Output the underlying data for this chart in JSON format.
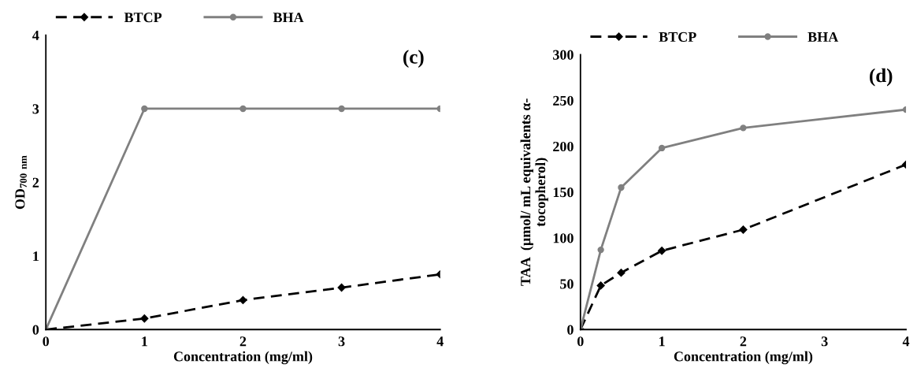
{
  "chart_data": [
    {
      "type": "line",
      "title": null,
      "annotations": [
        "(c)"
      ],
      "xlabel": "Concentration (mg/ml)",
      "ylabel": "OD$_{700}$ $_{nm}$",
      "xlim": [
        0,
        4
      ],
      "xticks": [
        0,
        1,
        2,
        3,
        4
      ],
      "ylim": [
        0,
        4
      ],
      "yticks": [
        0,
        1,
        2,
        3,
        4
      ],
      "grid": false,
      "legend": "top",
      "series": [
        {
          "name": "BTCP",
          "color": "#000000",
          "marker": "diamond",
          "line_style": "dashed",
          "x": [
            0,
            1,
            2,
            3,
            4
          ],
          "values": [
            0,
            0.15,
            0.4,
            0.57,
            0.75
          ]
        },
        {
          "name": "BHA",
          "color": "#808080",
          "marker": "circle",
          "line_style": "solid",
          "x": [
            0,
            1,
            2,
            3,
            4
          ],
          "values": [
            0,
            3,
            3,
            3,
            3
          ]
        }
      ]
    },
    {
      "type": "line",
      "annotations": [
        "(d)"
      ],
      "xlabel": "Concentration (mg/ml)",
      "ylabel": "TAA  (µmol/ mL equivalents α-\ntocopherol)",
      "xlim": [
        0,
        4
      ],
      "xticks": [
        0,
        1,
        2,
        3,
        4
      ],
      "ylim": [
        0,
        300
      ],
      "yticks": [
        0,
        50,
        100,
        150,
        200,
        250,
        300
      ],
      "grid": false,
      "legend": "top",
      "series": [
        {
          "name": "BTCP",
          "color": "#000000",
          "marker": "diamond",
          "line_style": "dashed",
          "x": [
            0,
            0.25,
            0.5,
            1,
            2,
            4
          ],
          "values": [
            0,
            48,
            62,
            86,
            109,
            180
          ]
        },
        {
          "name": "BHA",
          "color": "#808080",
          "marker": "circle",
          "line_style": "solid",
          "x": [
            0,
            0.25,
            0.5,
            1,
            2,
            4
          ],
          "values": [
            0,
            87,
            155,
            198,
            220,
            240
          ]
        }
      ]
    }
  ]
}
